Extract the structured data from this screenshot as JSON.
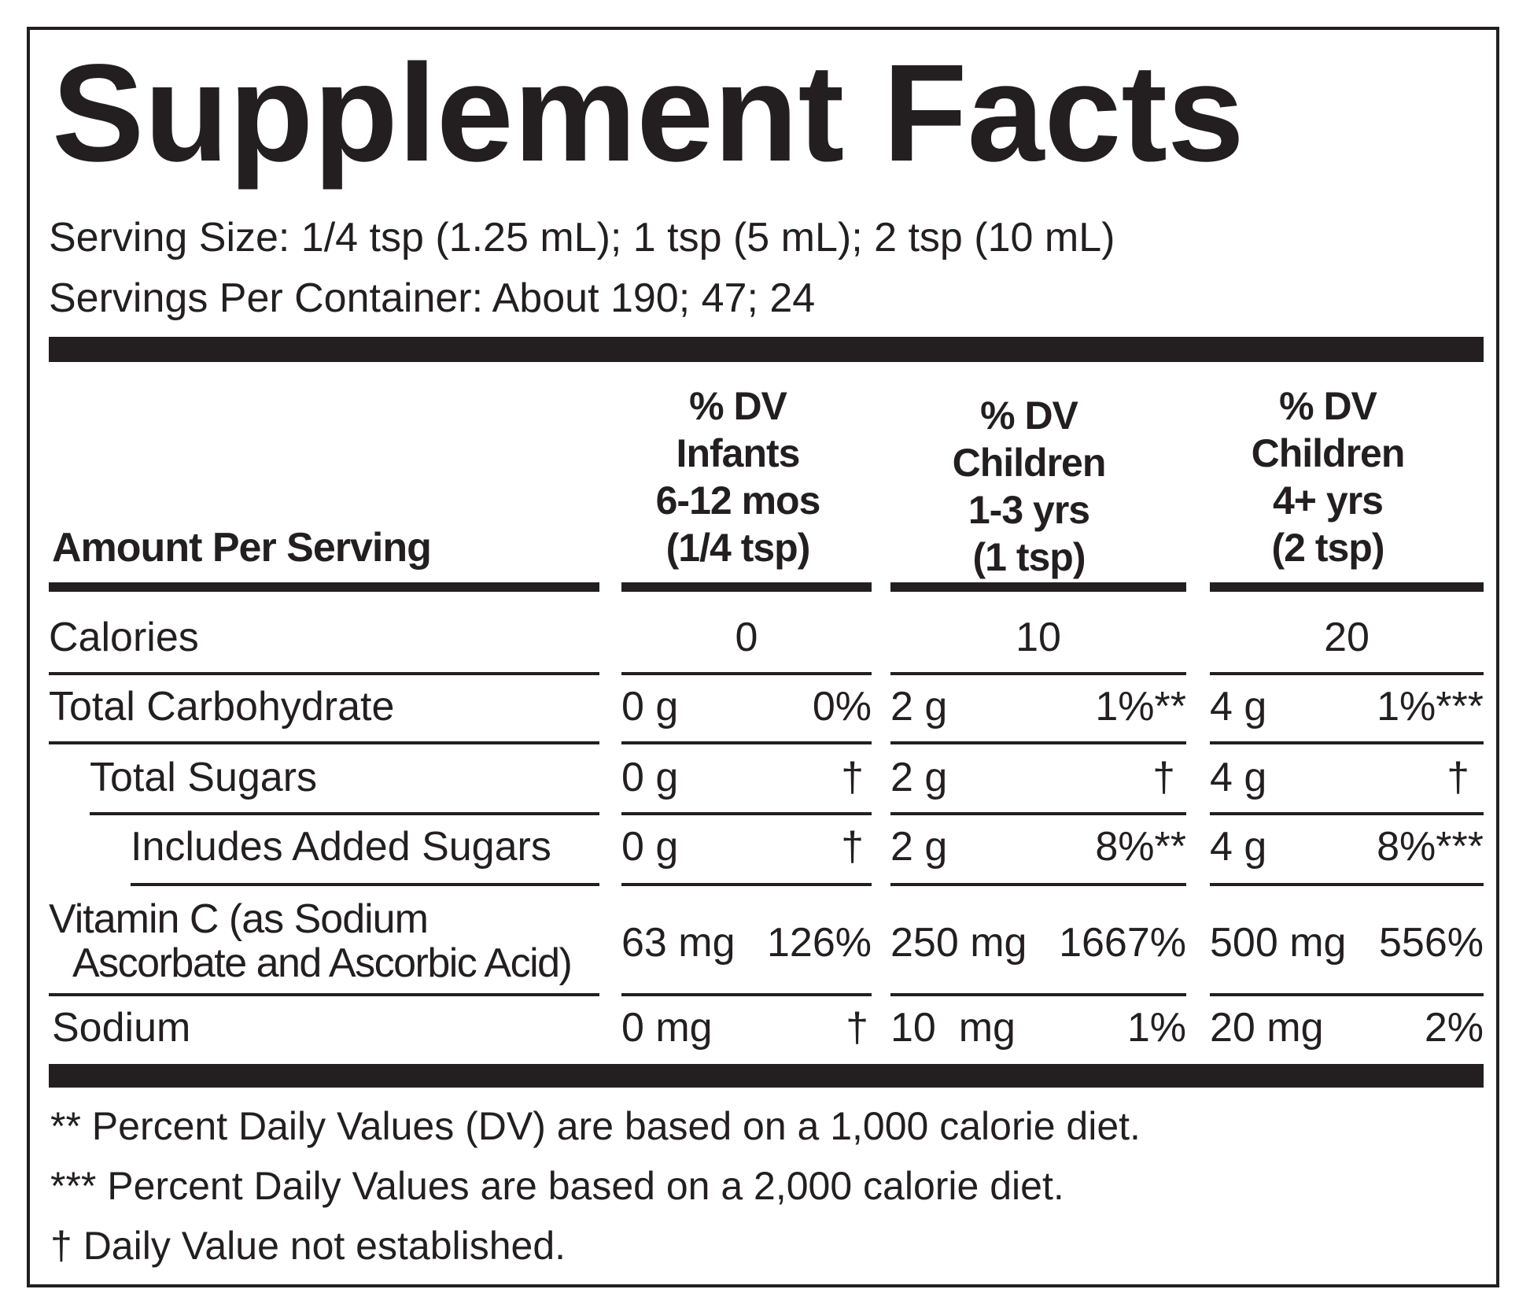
{
  "title": "Supplement Facts",
  "serving_size": "Serving Size: 1/4 tsp (1.25 mL); 1 tsp (5 mL); 2 tsp (10 mL)",
  "servings_per_container": "Servings Per Container: About 190; 47; 24",
  "amount_per_serving": "Amount Per Serving",
  "columns": [
    {
      "line1": "% DV",
      "line2": "Infants",
      "line3": "6-12 mos",
      "line4": "(1/4 tsp)"
    },
    {
      "line1": "% DV",
      "line2": "Children",
      "line3": "1-3 yrs",
      "line4": "(1 tsp)"
    },
    {
      "line1": "% DV",
      "line2": "Children",
      "line3": "4+ yrs",
      "line4": "(2 tsp)"
    }
  ],
  "rows": [
    {
      "label": "Calories",
      "values": [
        "0",
        "10",
        "20"
      ]
    },
    {
      "label": "Total Carbohydrate",
      "amounts": [
        "0 g",
        "2 g",
        "4 g"
      ],
      "dv": [
        "0%",
        "1%**",
        "1%***"
      ]
    },
    {
      "label": "Total Sugars",
      "amounts": [
        "0 g",
        "2 g",
        "4 g"
      ],
      "dv": [
        "†",
        "†",
        "†"
      ]
    },
    {
      "label": "Includes Added Sugars",
      "amounts": [
        "0 g",
        "2 g",
        "4 g"
      ],
      "dv": [
        "†",
        "8%**",
        "8%***"
      ]
    },
    {
      "label_line1": "Vitamin C (as Sodium",
      "label_line2": "Ascorbate and Ascorbic Acid)",
      "amounts": [
        "63 mg",
        "250 mg",
        "500 mg"
      ],
      "dv": [
        "126%",
        "1667%",
        "556%"
      ]
    },
    {
      "label": "Sodium",
      "amounts": [
        "0 mg",
        "10  mg",
        "20 mg"
      ],
      "dv": [
        "†",
        "1%",
        "2%"
      ]
    }
  ],
  "footnotes": [
    "** Percent Daily Values (DV) are based on a 1,000 calorie diet.",
    "*** Percent Daily Values are based on a 2,000 calorie diet.",
    "† Daily Value not established."
  ]
}
